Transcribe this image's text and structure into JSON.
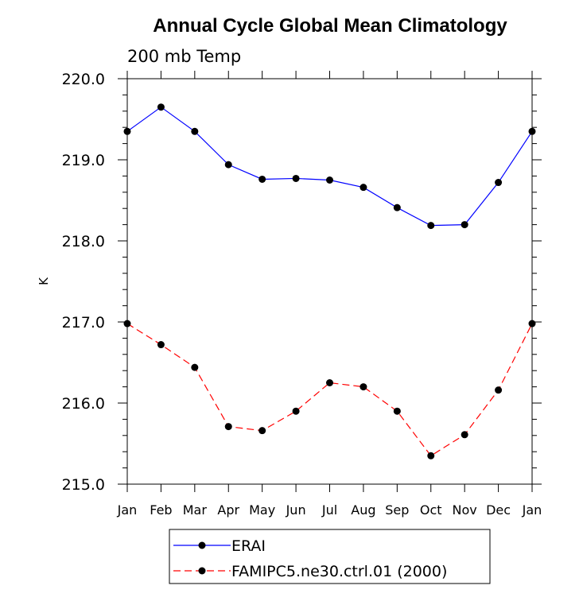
{
  "chart_data": {
    "type": "line",
    "title": "Annual Cycle Global Mean Climatology",
    "subtitle": "200 mb Temp",
    "xlabel": "",
    "ylabel": "K",
    "categories": [
      "Jan",
      "Feb",
      "Mar",
      "Apr",
      "May",
      "Jun",
      "Jul",
      "Aug",
      "Sep",
      "Oct",
      "Nov",
      "Dec",
      "Jan"
    ],
    "ylim": [
      215.0,
      220.0
    ],
    "yticks": [
      "215.0",
      "216.0",
      "217.0",
      "218.0",
      "219.0",
      "220.0"
    ],
    "grid": false,
    "legend_position": "bottom",
    "series": [
      {
        "name": "ERAI",
        "color": "#0000ff",
        "dash": "solid",
        "values": [
          219.35,
          219.65,
          219.35,
          218.94,
          218.76,
          218.77,
          218.75,
          218.66,
          218.41,
          218.19,
          218.2,
          218.72,
          219.35
        ]
      },
      {
        "name": "FAMIPC5.ne30.ctrl.01 (2000)",
        "color": "#ff0000",
        "dash": "dashed",
        "values": [
          216.98,
          216.72,
          216.44,
          215.71,
          215.66,
          215.9,
          216.25,
          216.2,
          215.9,
          215.35,
          215.61,
          216.16,
          216.98
        ]
      }
    ]
  }
}
